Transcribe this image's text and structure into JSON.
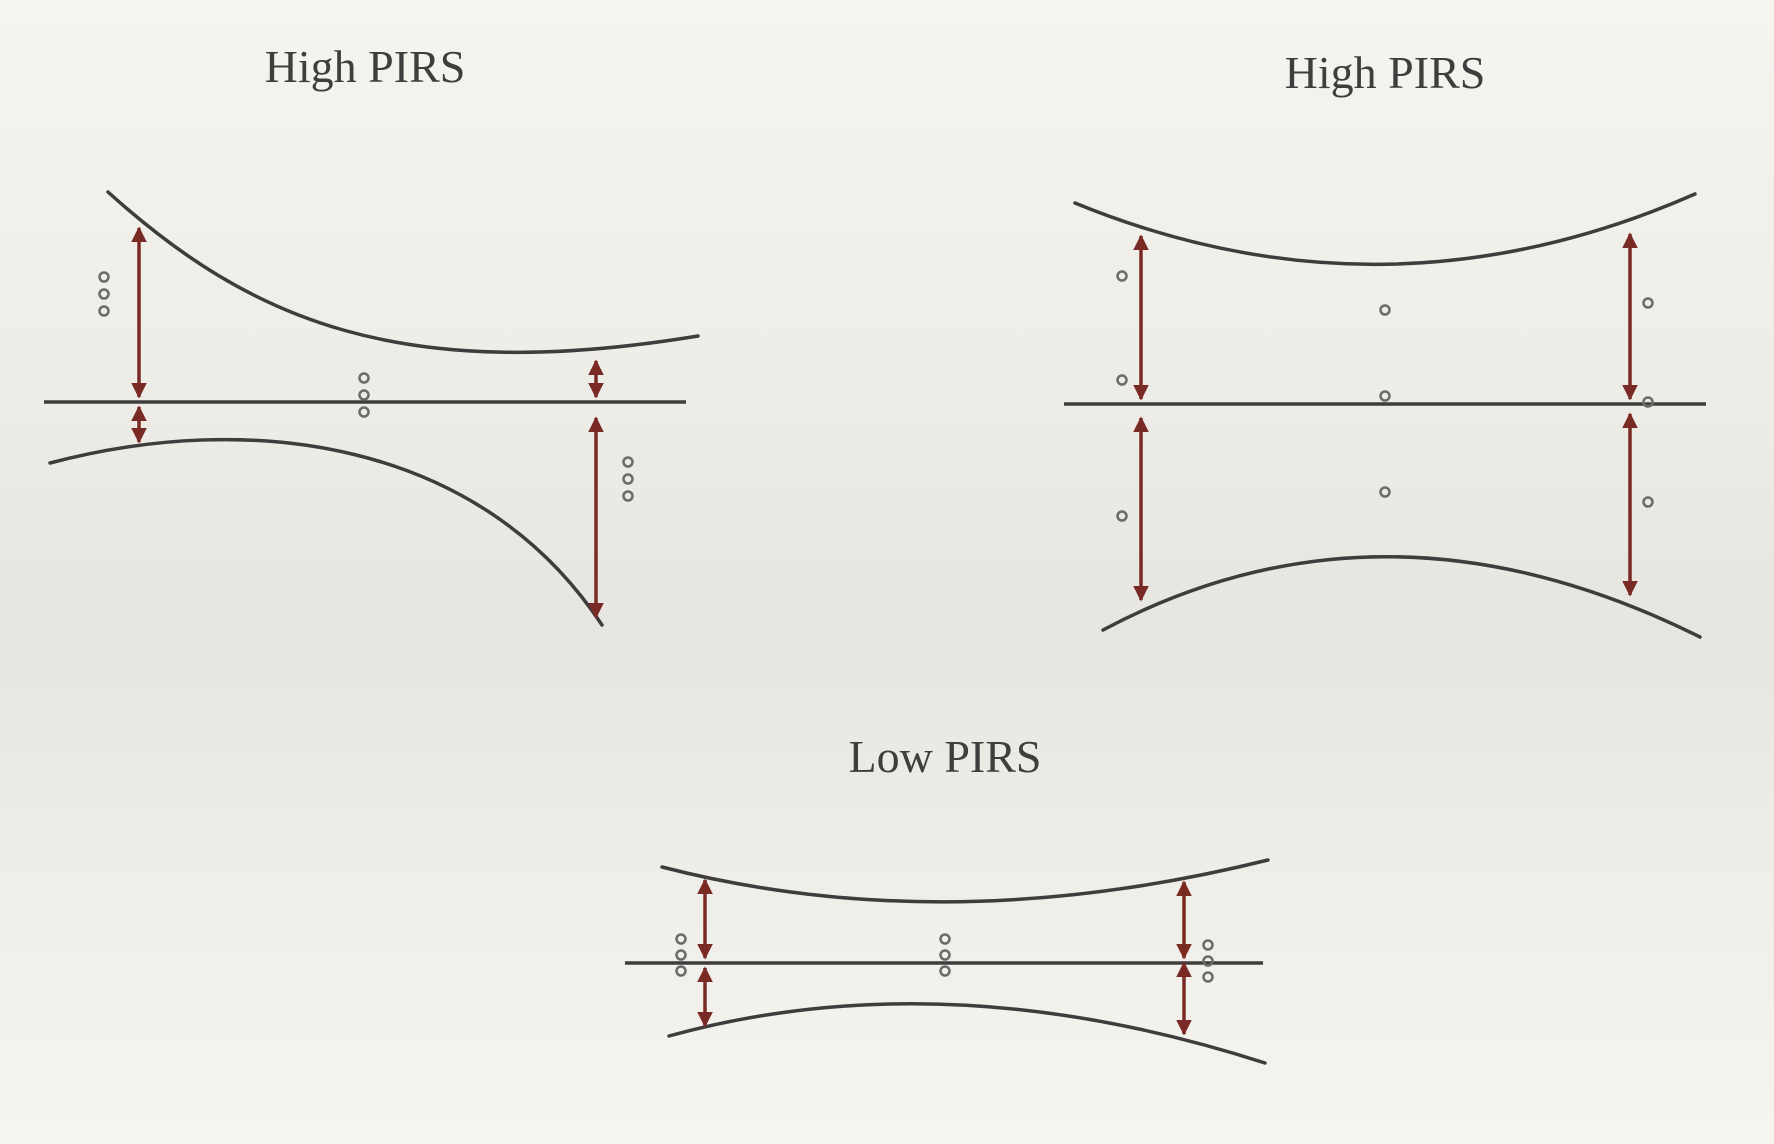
{
  "panels": {
    "top_left": {
      "title": "High PIRS"
    },
    "top_right": {
      "title": "High PIRS"
    },
    "bottom": {
      "title": "Low PIRS"
    }
  },
  "colors": {
    "curve": "#3d3d3d",
    "arrow": "#7a2a25",
    "marker": "#6b6b6b"
  }
}
